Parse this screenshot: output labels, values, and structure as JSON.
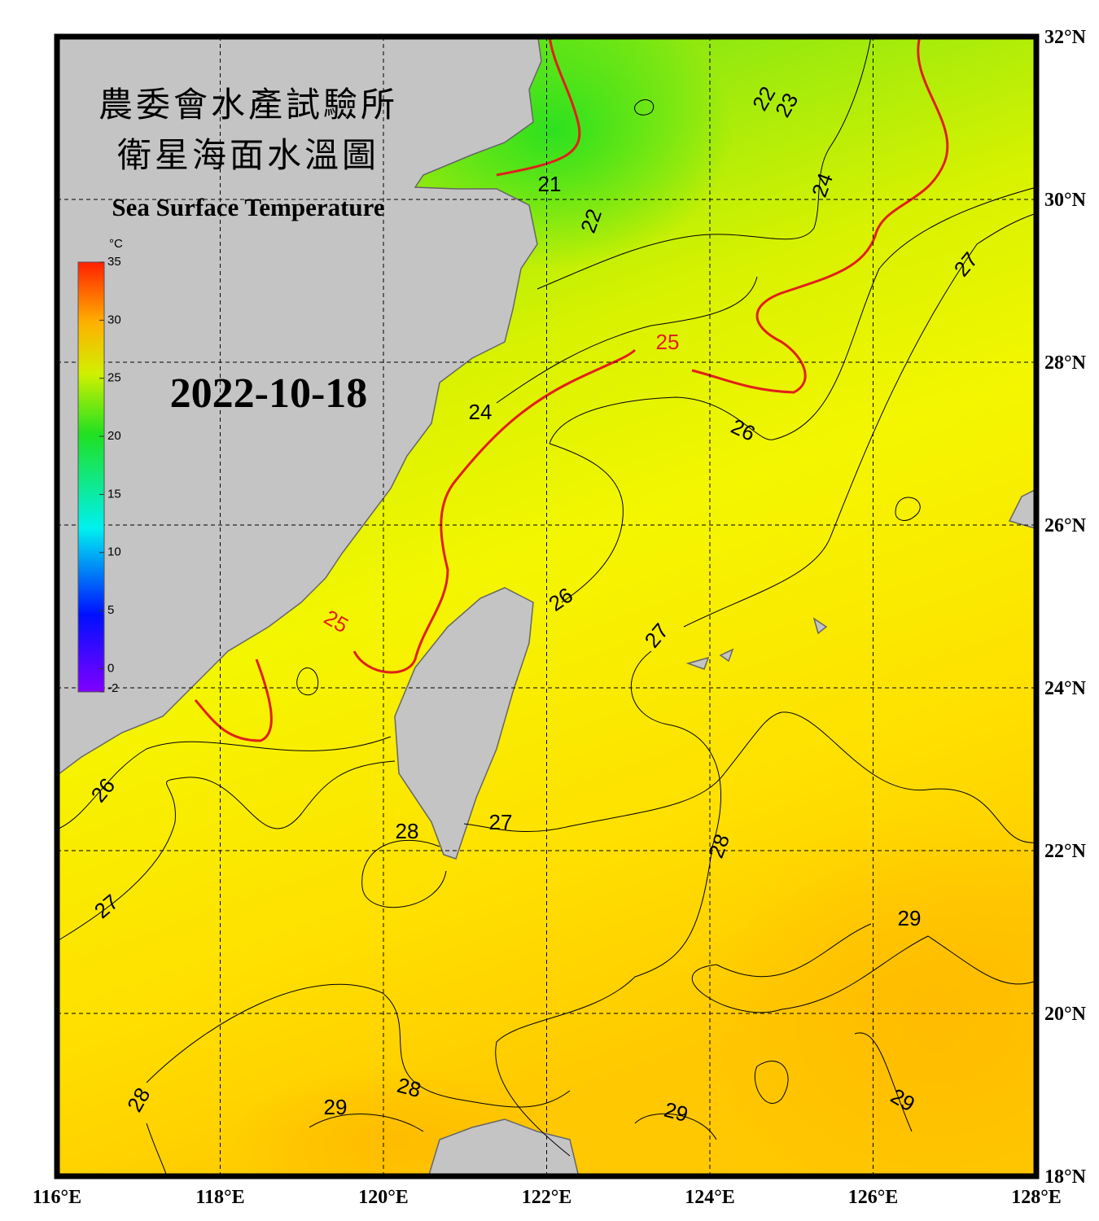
{
  "title_zh_1": "農委會水產試驗所",
  "title_zh_2": "衛星海面水溫圖",
  "title_en": "Sea Surface Temperature",
  "date": "2022-10-18",
  "colorbar": {
    "unit": "°C",
    "ticks": [
      35,
      30,
      25,
      20,
      15,
      10,
      5,
      0,
      -2
    ]
  },
  "lon_ticks": [
    {
      "value": 116,
      "label": "116°E"
    },
    {
      "value": 118,
      "label": "118°E"
    },
    {
      "value": 120,
      "label": "120°E"
    },
    {
      "value": 122,
      "label": "122°E"
    },
    {
      "value": 124,
      "label": "124°E"
    },
    {
      "value": 126,
      "label": "126°E"
    },
    {
      "value": 128,
      "label": "128°E"
    }
  ],
  "lat_ticks": [
    {
      "value": 32,
      "label": "32°N"
    },
    {
      "value": 30,
      "label": "30°N"
    },
    {
      "value": 28,
      "label": "28°N"
    },
    {
      "value": 26,
      "label": "26°N"
    },
    {
      "value": 24,
      "label": "24°N"
    },
    {
      "value": 22,
      "label": "22°N"
    },
    {
      "value": 20,
      "label": "20°N"
    },
    {
      "value": 18,
      "label": "18°N"
    }
  ],
  "contour_labels": [
    21,
    22,
    23,
    22,
    24,
    24,
    25,
    25,
    26,
    26,
    26,
    27,
    27,
    27,
    27,
    28,
    28,
    28,
    28,
    29,
    29,
    29,
    29
  ]
}
